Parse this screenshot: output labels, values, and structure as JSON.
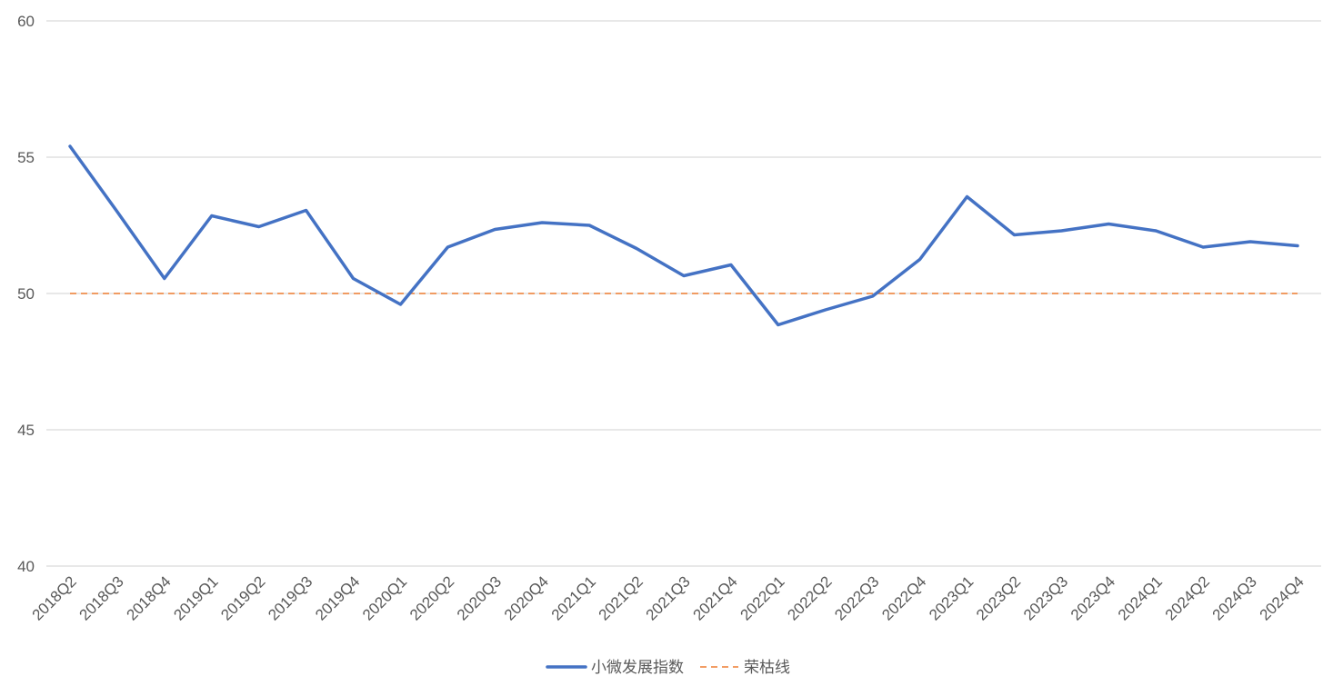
{
  "chart_data": {
    "type": "line",
    "title": "",
    "xlabel": "",
    "ylabel": "",
    "ylim": [
      40,
      60
    ],
    "yticks": [
      40,
      45,
      50,
      55,
      60
    ],
    "grid": true,
    "legend_position": "bottom",
    "categories": [
      "2018Q2",
      "2018Q3",
      "2018Q4",
      "2019Q1",
      "2019Q2",
      "2019Q3",
      "2019Q4",
      "2020Q1",
      "2020Q2",
      "2020Q3",
      "2020Q4",
      "2021Q1",
      "2021Q2",
      "2021Q3",
      "2021Q4",
      "2022Q1",
      "2022Q2",
      "2022Q3",
      "2022Q4",
      "2023Q1",
      "2023Q2",
      "2023Q3",
      "2023Q4",
      "2024Q1",
      "2024Q2",
      "2024Q3",
      "2024Q4"
    ],
    "series": [
      {
        "name": "小微发展指数",
        "style": "solid",
        "color": "#4472C4",
        "values": [
          55.4,
          53.0,
          50.55,
          52.85,
          52.45,
          53.05,
          50.55,
          49.6,
          51.7,
          52.35,
          52.6,
          52.5,
          51.65,
          50.65,
          51.05,
          48.85,
          49.4,
          49.9,
          51.25,
          53.55,
          52.15,
          52.3,
          52.55,
          52.3,
          51.7,
          51.9,
          51.75
        ]
      },
      {
        "name": "荣枯线",
        "style": "dashed",
        "color": "#ED7D31",
        "values": [
          50,
          50,
          50,
          50,
          50,
          50,
          50,
          50,
          50,
          50,
          50,
          50,
          50,
          50,
          50,
          50,
          50,
          50,
          50,
          50,
          50,
          50,
          50,
          50,
          50,
          50,
          50
        ]
      }
    ],
    "grid_color": "#D9D9D9",
    "text_color": "#595959"
  }
}
